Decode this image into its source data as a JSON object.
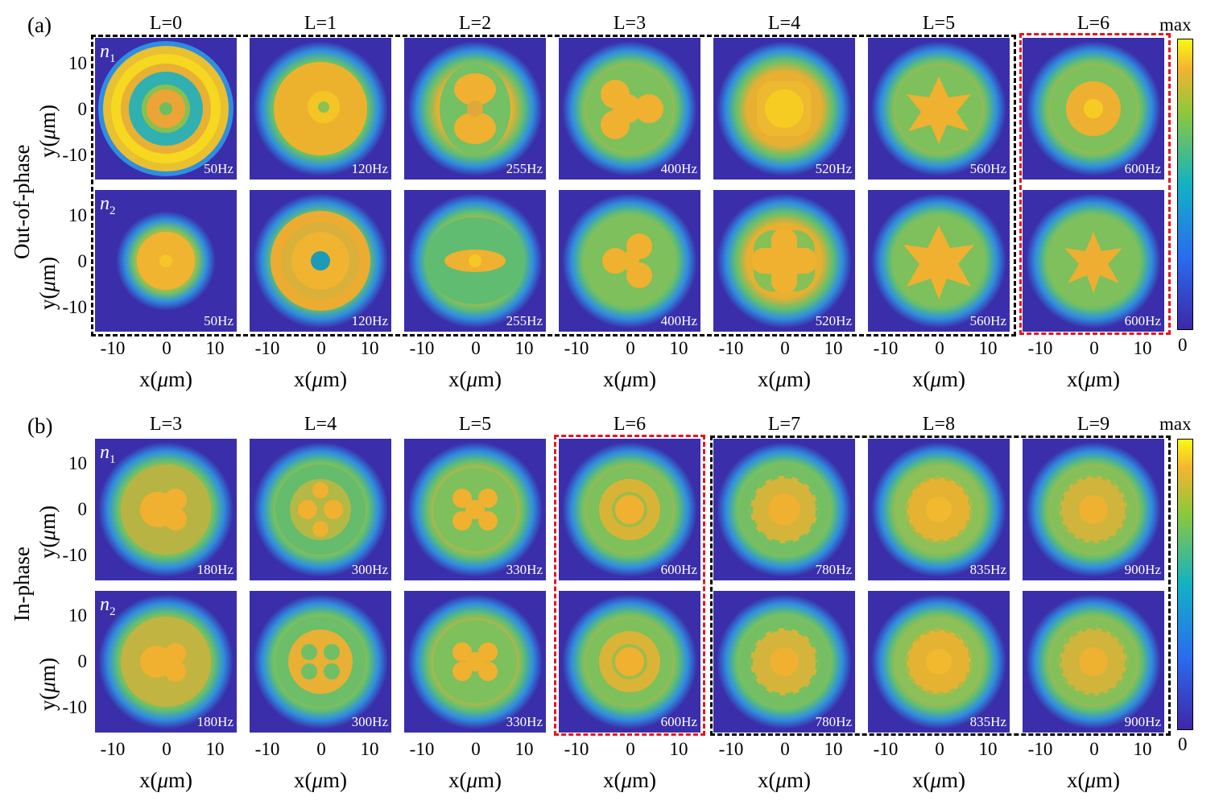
{
  "colors": {
    "background": "#3a2eaa",
    "ring_yellow": "#f0c020",
    "ring_orange": "#f0a030",
    "ring_green": "#40c080",
    "black_box": "#000000",
    "red_box": "#e8141e"
  },
  "colorbar": {
    "max_label": "max",
    "min_label": "0"
  },
  "axis": {
    "x_label": "x(",
    "y_label": "y(",
    "mu": "μ",
    "unit_tail": "m)",
    "x_ticks": [
      "-10",
      "0",
      "10"
    ],
    "y_ticks": [
      "10",
      "0",
      "-10"
    ]
  },
  "panels": [
    {
      "label": "(a)",
      "row_label": "Out-of-phase",
      "rows": [
        {
          "name": "n",
          "sub": "1"
        },
        {
          "name": "n",
          "sub": "2"
        }
      ],
      "columns": [
        {
          "title": "L=0",
          "freq": "50Hz"
        },
        {
          "title": "L=1",
          "freq": "120Hz"
        },
        {
          "title": "L=2",
          "freq": "255Hz"
        },
        {
          "title": "L=3",
          "freq": "400Hz"
        },
        {
          "title": "L=4",
          "freq": "520Hz"
        },
        {
          "title": "L=5",
          "freq": "560Hz"
        },
        {
          "title": "L=6",
          "freq": "600Hz"
        }
      ]
    },
    {
      "label": "(b)",
      "row_label": "In-phase",
      "rows": [
        {
          "name": "n",
          "sub": "1"
        },
        {
          "name": "n",
          "sub": "2"
        }
      ],
      "columns": [
        {
          "title": "L=3",
          "freq": "180Hz"
        },
        {
          "title": "L=4",
          "freq": "300Hz"
        },
        {
          "title": "L=5",
          "freq": "330Hz"
        },
        {
          "title": "L=6",
          "freq": "600Hz"
        },
        {
          "title": "L=7",
          "freq": "780Hz"
        },
        {
          "title": "L=8",
          "freq": "835Hz"
        },
        {
          "title": "L=9",
          "freq": "900Hz"
        }
      ]
    }
  ]
}
